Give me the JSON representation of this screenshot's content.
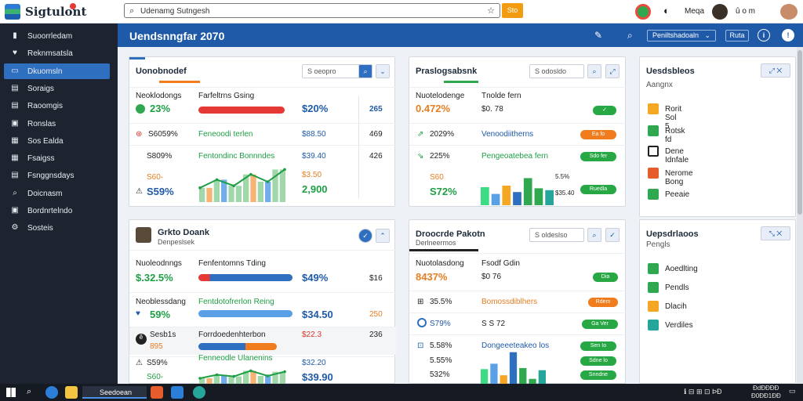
{
  "browser": {
    "brand": "Sigtulont",
    "search_text": "Udenamg Sutngesh",
    "go_label": "Sto",
    "user": "Meqa",
    "controls": "û  o  m"
  },
  "sidebar": {
    "items": [
      {
        "icon": "▮",
        "label": "Suoorrledam"
      },
      {
        "icon": "♥",
        "label": "Reknmsatsla"
      },
      {
        "icon": "▭",
        "label": "Dkuomsln"
      },
      {
        "icon": "▤",
        "label": "Soraigs"
      },
      {
        "icon": "▤",
        "label": "Raoomgis"
      },
      {
        "icon": "▣",
        "label": "Ronslas"
      },
      {
        "icon": "▦",
        "label": "Sos Ealda"
      },
      {
        "icon": "▦",
        "label": "Fsaigss"
      },
      {
        "icon": "▤",
        "label": "Fsnggnsdays"
      },
      {
        "icon": "⌕",
        "label": "Doicnasm"
      },
      {
        "icon": "▣",
        "label": "Bordnrtelndo"
      },
      {
        "icon": "⚙",
        "label": "Sosteis"
      }
    ]
  },
  "header": {
    "title": "Uendsnngfar 2070",
    "select_label": "Peniltshadoaln",
    "button_label": "Ruta",
    "info": "i",
    "help": "!"
  },
  "panel1": {
    "title": "Uonobnodef",
    "search": "S oeopro",
    "rows": [
      {
        "a_label": "Neoklodongs",
        "a_value": "23%",
        "b_label": "Farfeltrns Gsing",
        "b_value": "$20%",
        "c_value": "265"
      },
      {
        "a_value": "S6059%",
        "b_label": "Feneoodi terlen",
        "b_value": "$88.50",
        "c_value": "469"
      },
      {
        "a_value": "S809%",
        "b_label": "Fentondinc Bonnndes",
        "b_value": "$39.40",
        "c_value": "426"
      },
      {
        "a_value": "S60-",
        "b_value": "$3.50",
        "c_value": ""
      },
      {
        "a_value": "S59%",
        "b_value": "2,900",
        "c_value": ""
      }
    ]
  },
  "panel2": {
    "title": "Praslogsabsnk",
    "search": "S odosldo",
    "rows": [
      {
        "a_label": "Nuotelodenge",
        "a_value": "0.472%",
        "b_label": "Tnolde fern",
        "b_value": "$0.  78",
        "pill": ""
      },
      {
        "a_value": "2029%",
        "b_label": "Venoodiitherns",
        "pill": "Ea fo"
      },
      {
        "a_value": "225%",
        "b_label": "Pengeoatebea fern",
        "pill": "Sdo fer"
      },
      {
        "a_value": "S60",
        "b_value": "5.5%",
        "pill": ""
      },
      {
        "a_value": "S72%",
        "b_value": "$35.40",
        "pill": "Ruedla"
      }
    ]
  },
  "panel3": {
    "title": "Uesdsbleos",
    "subtitle": "Aangnx",
    "items": [
      "Rorit Sol 5",
      "Rotsk fd",
      "Dene Idnfale",
      "Nerome Bong",
      "Peeaie"
    ]
  },
  "panel4": {
    "title": "Grkto Doank",
    "subtitle": "Denpeslsek",
    "rows": [
      {
        "a_label": "Nuoleodnngs",
        "a_value": "$.32.5%",
        "b_label": "Fenfentomns Tding",
        "b_value": "$49%",
        "c_value": "$16"
      },
      {
        "a_label": "Neoblessdang",
        "a_value": "59%",
        "b_label": "Fentdotofrerlon Reing",
        "b_value": "$34.50",
        "c_value": "250"
      },
      {
        "a_label": "Sesb1s",
        "a_value": "895",
        "b_label": "Forrdoedenhterbon",
        "b_value": "$22.3",
        "c_value": "236"
      },
      {
        "a_value": "S59%",
        "b_label": "Fenneodle Ulanenins",
        "b_value": "$32.20",
        "c_value": ""
      },
      {
        "a_value": "S60-",
        "b_value": "$39.90",
        "c_value": ""
      }
    ]
  },
  "panel5": {
    "title": "Droocrde Pakotn",
    "subtitle": "Derlneermos",
    "search": "S oldeslso",
    "rows": [
      {
        "a_label": "Nuotolasdong",
        "a_value": "8437%",
        "b_label": "Fsodf Gdin",
        "b_value": "$0   76",
        "pill": "Dia"
      },
      {
        "a_value": "35.5%",
        "b_label": "Bomossdiblhers",
        "pill": "Rdem"
      },
      {
        "a_value": "S79%",
        "b_value": "S  S  72",
        "pill": "Ga Ver"
      },
      {
        "a_value": "5.58%",
        "b_label": "Dongeeeteakeo los",
        "pill": "Sen Io"
      },
      {
        "a_value": "5.55%",
        "b_value": "",
        "pill": "Sdne lo"
      },
      {
        "a_value": "532%",
        "b_value": "",
        "pill": "Snndne"
      }
    ]
  },
  "panel6": {
    "title": "Uepsdrlaoos",
    "subtitle": "Pengls",
    "items": [
      "Aoedlting",
      "Pendls",
      "Dlacih",
      "Verdiles"
    ]
  },
  "taskbar": {
    "active_app": "Seedoean",
    "tray_text": "ℹ  ⊟ ⊞ ⊡ ÞÐ",
    "time": "ÐdÐÐÐÐ",
    "date": "Ð0ÐÐ1ÐÐ"
  },
  "colors": {
    "accent": "#1f5aa8",
    "green": "#1e9e45",
    "orange": "#f07c1e",
    "red": "#d9342b",
    "sidebar": "#1e2330"
  },
  "chart_data": [
    {
      "type": "area",
      "values": [
        35,
        55,
        40,
        68,
        50,
        80
      ]
    },
    {
      "type": "bar",
      "values": [
        48,
        30,
        52,
        35,
        72,
        45,
        40
      ]
    },
    {
      "type": "area",
      "values": [
        30,
        45,
        38,
        62,
        40,
        58
      ]
    },
    {
      "type": "bar",
      "values": [
        45,
        60,
        28,
        92,
        48,
        18,
        42
      ]
    }
  ]
}
